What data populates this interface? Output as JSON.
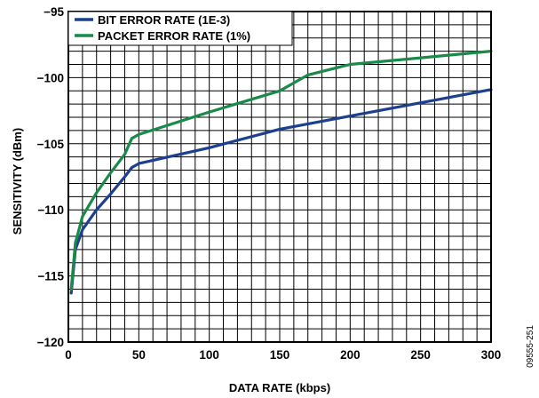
{
  "chart_data": {
    "type": "line",
    "xlabel": "DATA RATE (kbps)",
    "ylabel": "SENSITIVITY (dBm)",
    "xlim": [
      0,
      300
    ],
    "ylim": [
      -120,
      -95
    ],
    "x_ticks": [
      "0",
      "50",
      "100",
      "150",
      "200",
      "250",
      "300"
    ],
    "y_ticks": [
      "−95",
      "−100",
      "−105",
      "−110",
      "−115",
      "−120"
    ],
    "grid": true,
    "legend_position": "top-left",
    "figure_id": "09555-251",
    "series": [
      {
        "name": "BIT ERROR RATE (1E-3)",
        "color": "#1c3f8f",
        "x": [
          2,
          5,
          10,
          20,
          30,
          40,
          45,
          50,
          100,
          150,
          200,
          250,
          300
        ],
        "y": [
          -116.3,
          -113.0,
          -111.5,
          -110.0,
          -108.8,
          -107.5,
          -106.8,
          -106.5,
          -105.3,
          -103.9,
          -102.9,
          -101.9,
          -100.9
        ]
      },
      {
        "name": "PACKET ERROR RATE (1%)",
        "color": "#1a8a4a",
        "x": [
          2,
          5,
          10,
          20,
          30,
          40,
          45,
          50,
          100,
          150,
          170,
          200,
          250,
          300
        ],
        "y": [
          -116.0,
          -112.5,
          -110.5,
          -108.7,
          -107.2,
          -105.8,
          -104.6,
          -104.3,
          -102.6,
          -101.0,
          -99.8,
          -99.0,
          -98.5,
          -98.0
        ]
      }
    ]
  }
}
